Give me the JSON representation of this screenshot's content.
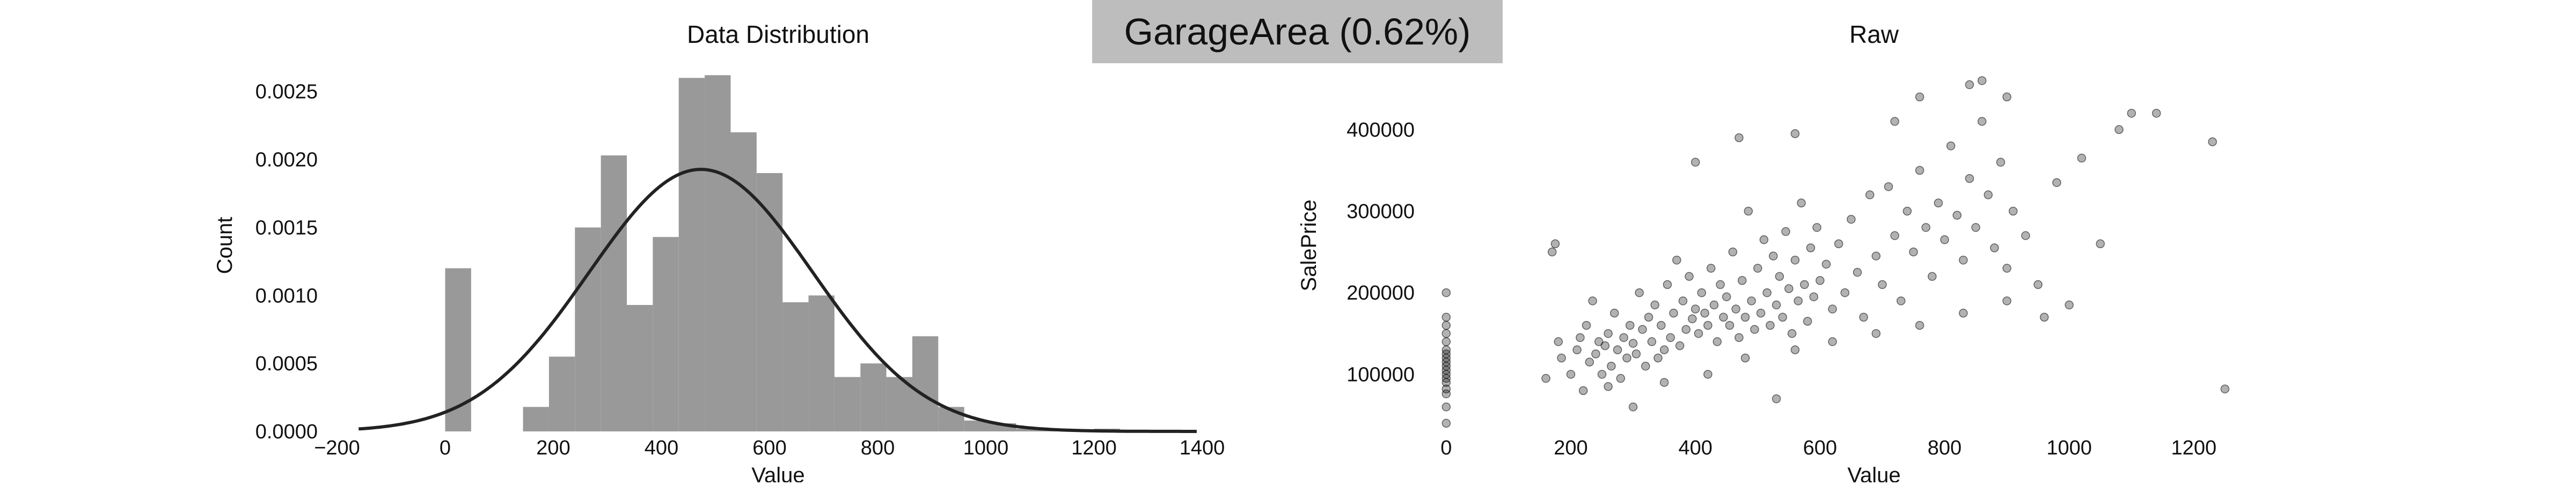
{
  "figure": {
    "title": "GarageArea (0.62%)"
  },
  "chart_data": [
    {
      "type": "bar",
      "title": "Data Distribution",
      "xlabel": "Value",
      "ylabel": "Count",
      "xlim": [
        -200,
        1400
      ],
      "ylim": [
        0,
        0.0027
      ],
      "xticks": [
        -200,
        0,
        200,
        400,
        600,
        800,
        1000,
        1200,
        1400
      ],
      "yticks": [
        0.0,
        0.0005,
        0.001,
        0.0015,
        0.002,
        0.0025
      ],
      "ytick_labels": [
        "0.0000",
        "0.0005",
        "0.0010",
        "0.0015",
        "0.0020",
        "0.0025"
      ],
      "grid": false,
      "bar_color": "#999999",
      "bins": [
        {
          "x0": 0,
          "x1": 48,
          "value": 0.0012
        },
        {
          "x0": 144,
          "x1": 192,
          "value": 0.00018
        },
        {
          "x0": 192,
          "x1": 240,
          "value": 0.00055
        },
        {
          "x0": 240,
          "x1": 288,
          "value": 0.0015
        },
        {
          "x0": 288,
          "x1": 336,
          "value": 0.00203
        },
        {
          "x0": 336,
          "x1": 384,
          "value": 0.00093
        },
        {
          "x0": 384,
          "x1": 432,
          "value": 0.00143
        },
        {
          "x0": 432,
          "x1": 480,
          "value": 0.0026
        },
        {
          "x0": 480,
          "x1": 528,
          "value": 0.00262
        },
        {
          "x0": 528,
          "x1": 576,
          "value": 0.0022
        },
        {
          "x0": 576,
          "x1": 624,
          "value": 0.0019
        },
        {
          "x0": 624,
          "x1": 672,
          "value": 0.00095
        },
        {
          "x0": 672,
          "x1": 720,
          "value": 0.001
        },
        {
          "x0": 720,
          "x1": 768,
          "value": 0.0004
        },
        {
          "x0": 768,
          "x1": 816,
          "value": 0.0005
        },
        {
          "x0": 816,
          "x1": 864,
          "value": 0.0004
        },
        {
          "x0": 864,
          "x1": 912,
          "value": 0.0007
        },
        {
          "x0": 912,
          "x1": 960,
          "value": 0.00018
        },
        {
          "x0": 960,
          "x1": 1008,
          "value": 8e-05
        },
        {
          "x0": 1008,
          "x1": 1056,
          "value": 6e-05
        },
        {
          "x0": 1056,
          "x1": 1104,
          "value": 2e-05
        },
        {
          "x0": 1104,
          "x1": 1152,
          "value": 1e-05
        },
        {
          "x0": 1200,
          "x1": 1248,
          "value": 2e-05
        },
        {
          "x0": 1248,
          "x1": 1296,
          "value": 1e-05
        }
      ],
      "curve": {
        "kind": "normal",
        "mean": 473,
        "std": 207,
        "color": "#222222",
        "x_range": [
          -160,
          1390
        ]
      }
    },
    {
      "type": "scatter",
      "title": "Raw",
      "xlabel": "Value",
      "ylabel": "SalePrice",
      "xlim": [
        -30,
        1400
      ],
      "ylim": [
        30000,
        480000
      ],
      "xticks": [
        0,
        200,
        400,
        600,
        800,
        1000,
        1200
      ],
      "yticks": [
        100000,
        200000,
        300000,
        400000
      ],
      "grid": false,
      "point_color": "#000000",
      "point_opacity": 0.3,
      "points": [
        {
          "x": 0,
          "y": 82000
        },
        {
          "x": 0,
          "y": 90000
        },
        {
          "x": 0,
          "y": 95000
        },
        {
          "x": 0,
          "y": 100000
        },
        {
          "x": 0,
          "y": 105000
        },
        {
          "x": 0,
          "y": 110000
        },
        {
          "x": 0,
          "y": 115000
        },
        {
          "x": 0,
          "y": 120000
        },
        {
          "x": 0,
          "y": 125000
        },
        {
          "x": 0,
          "y": 130000
        },
        {
          "x": 0,
          "y": 140000
        },
        {
          "x": 0,
          "y": 150000
        },
        {
          "x": 0,
          "y": 200000
        },
        {
          "x": 0,
          "y": 60000
        },
        {
          "x": 0,
          "y": 40000
        },
        {
          "x": 0,
          "y": 76000
        },
        {
          "x": 0,
          "y": 160000
        },
        {
          "x": 0,
          "y": 170000
        },
        {
          "x": 160,
          "y": 95000
        },
        {
          "x": 170,
          "y": 250000
        },
        {
          "x": 175,
          "y": 260000
        },
        {
          "x": 180,
          "y": 140000
        },
        {
          "x": 185,
          "y": 120000
        },
        {
          "x": 200,
          "y": 100000
        },
        {
          "x": 210,
          "y": 130000
        },
        {
          "x": 215,
          "y": 145000
        },
        {
          "x": 220,
          "y": 80000
        },
        {
          "x": 225,
          "y": 160000
        },
        {
          "x": 230,
          "y": 115000
        },
        {
          "x": 235,
          "y": 190000
        },
        {
          "x": 240,
          "y": 125000
        },
        {
          "x": 245,
          "y": 140000
        },
        {
          "x": 250,
          "y": 100000
        },
        {
          "x": 255,
          "y": 135000
        },
        {
          "x": 260,
          "y": 150000
        },
        {
          "x": 265,
          "y": 110000
        },
        {
          "x": 270,
          "y": 175000
        },
        {
          "x": 275,
          "y": 130000
        },
        {
          "x": 280,
          "y": 95000
        },
        {
          "x": 285,
          "y": 145000
        },
        {
          "x": 290,
          "y": 120000
        },
        {
          "x": 295,
          "y": 160000
        },
        {
          "x": 300,
          "y": 138000
        },
        {
          "x": 305,
          "y": 125000
        },
        {
          "x": 310,
          "y": 200000
        },
        {
          "x": 315,
          "y": 155000
        },
        {
          "x": 320,
          "y": 110000
        },
        {
          "x": 325,
          "y": 170000
        },
        {
          "x": 330,
          "y": 140000
        },
        {
          "x": 335,
          "y": 185000
        },
        {
          "x": 340,
          "y": 120000
        },
        {
          "x": 345,
          "y": 160000
        },
        {
          "x": 350,
          "y": 130000
        },
        {
          "x": 355,
          "y": 210000
        },
        {
          "x": 360,
          "y": 145000
        },
        {
          "x": 365,
          "y": 175000
        },
        {
          "x": 370,
          "y": 240000
        },
        {
          "x": 375,
          "y": 135000
        },
        {
          "x": 380,
          "y": 190000
        },
        {
          "x": 385,
          "y": 155000
        },
        {
          "x": 390,
          "y": 220000
        },
        {
          "x": 395,
          "y": 168000
        },
        {
          "x": 400,
          "y": 180000
        },
        {
          "x": 405,
          "y": 150000
        },
        {
          "x": 410,
          "y": 200000
        },
        {
          "x": 415,
          "y": 175000
        },
        {
          "x": 420,
          "y": 160000
        },
        {
          "x": 425,
          "y": 230000
        },
        {
          "x": 430,
          "y": 185000
        },
        {
          "x": 435,
          "y": 140000
        },
        {
          "x": 440,
          "y": 210000
        },
        {
          "x": 445,
          "y": 170000
        },
        {
          "x": 450,
          "y": 195000
        },
        {
          "x": 455,
          "y": 160000
        },
        {
          "x": 460,
          "y": 250000
        },
        {
          "x": 465,
          "y": 180000
        },
        {
          "x": 470,
          "y": 145000
        },
        {
          "x": 475,
          "y": 215000
        },
        {
          "x": 480,
          "y": 170000
        },
        {
          "x": 485,
          "y": 300000
        },
        {
          "x": 490,
          "y": 190000
        },
        {
          "x": 495,
          "y": 155000
        },
        {
          "x": 500,
          "y": 230000
        },
        {
          "x": 505,
          "y": 175000
        },
        {
          "x": 510,
          "y": 265000
        },
        {
          "x": 515,
          "y": 200000
        },
        {
          "x": 520,
          "y": 160000
        },
        {
          "x": 525,
          "y": 245000
        },
        {
          "x": 530,
          "y": 185000
        },
        {
          "x": 535,
          "y": 220000
        },
        {
          "x": 540,
          "y": 170000
        },
        {
          "x": 545,
          "y": 275000
        },
        {
          "x": 550,
          "y": 205000
        },
        {
          "x": 555,
          "y": 150000
        },
        {
          "x": 560,
          "y": 240000
        },
        {
          "x": 565,
          "y": 190000
        },
        {
          "x": 570,
          "y": 310000
        },
        {
          "x": 575,
          "y": 210000
        },
        {
          "x": 580,
          "y": 165000
        },
        {
          "x": 585,
          "y": 255000
        },
        {
          "x": 590,
          "y": 195000
        },
        {
          "x": 595,
          "y": 280000
        },
        {
          "x": 600,
          "y": 215000
        },
        {
          "x": 610,
          "y": 235000
        },
        {
          "x": 620,
          "y": 180000
        },
        {
          "x": 630,
          "y": 260000
        },
        {
          "x": 640,
          "y": 200000
        },
        {
          "x": 650,
          "y": 290000
        },
        {
          "x": 660,
          "y": 225000
        },
        {
          "x": 670,
          "y": 170000
        },
        {
          "x": 680,
          "y": 320000
        },
        {
          "x": 690,
          "y": 245000
        },
        {
          "x": 700,
          "y": 210000
        },
        {
          "x": 710,
          "y": 330000
        },
        {
          "x": 720,
          "y": 270000
        },
        {
          "x": 730,
          "y": 190000
        },
        {
          "x": 740,
          "y": 300000
        },
        {
          "x": 750,
          "y": 250000
        },
        {
          "x": 760,
          "y": 350000
        },
        {
          "x": 770,
          "y": 280000
        },
        {
          "x": 780,
          "y": 220000
        },
        {
          "x": 790,
          "y": 310000
        },
        {
          "x": 800,
          "y": 265000
        },
        {
          "x": 810,
          "y": 380000
        },
        {
          "x": 820,
          "y": 295000
        },
        {
          "x": 830,
          "y": 240000
        },
        {
          "x": 840,
          "y": 340000
        },
        {
          "x": 850,
          "y": 280000
        },
        {
          "x": 860,
          "y": 410000
        },
        {
          "x": 870,
          "y": 320000
        },
        {
          "x": 880,
          "y": 255000
        },
        {
          "x": 890,
          "y": 360000
        },
        {
          "x": 900,
          "y": 230000
        },
        {
          "x": 910,
          "y": 300000
        },
        {
          "x": 930,
          "y": 270000
        },
        {
          "x": 950,
          "y": 210000
        },
        {
          "x": 980,
          "y": 335000
        },
        {
          "x": 1000,
          "y": 185000
        },
        {
          "x": 1020,
          "y": 365000
        },
        {
          "x": 1050,
          "y": 260000
        },
        {
          "x": 1080,
          "y": 400000
        },
        {
          "x": 1100,
          "y": 420000
        },
        {
          "x": 1140,
          "y": 420000
        },
        {
          "x": 1230,
          "y": 385000
        },
        {
          "x": 1250,
          "y": 82000
        },
        {
          "x": 860,
          "y": 460000
        },
        {
          "x": 840,
          "y": 455000
        },
        {
          "x": 530,
          "y": 70000
        },
        {
          "x": 300,
          "y": 60000
        },
        {
          "x": 260,
          "y": 85000
        },
        {
          "x": 350,
          "y": 90000
        },
        {
          "x": 420,
          "y": 100000
        },
        {
          "x": 480,
          "y": 120000
        },
        {
          "x": 560,
          "y": 130000
        },
        {
          "x": 620,
          "y": 140000
        },
        {
          "x": 690,
          "y": 150000
        },
        {
          "x": 760,
          "y": 160000
        },
        {
          "x": 830,
          "y": 175000
        },
        {
          "x": 900,
          "y": 190000
        },
        {
          "x": 960,
          "y": 170000
        },
        {
          "x": 400,
          "y": 360000
        },
        {
          "x": 470,
          "y": 390000
        },
        {
          "x": 560,
          "y": 395000
        },
        {
          "x": 720,
          "y": 410000
        },
        {
          "x": 760,
          "y": 440000
        },
        {
          "x": 900,
          "y": 440000
        }
      ]
    }
  ]
}
